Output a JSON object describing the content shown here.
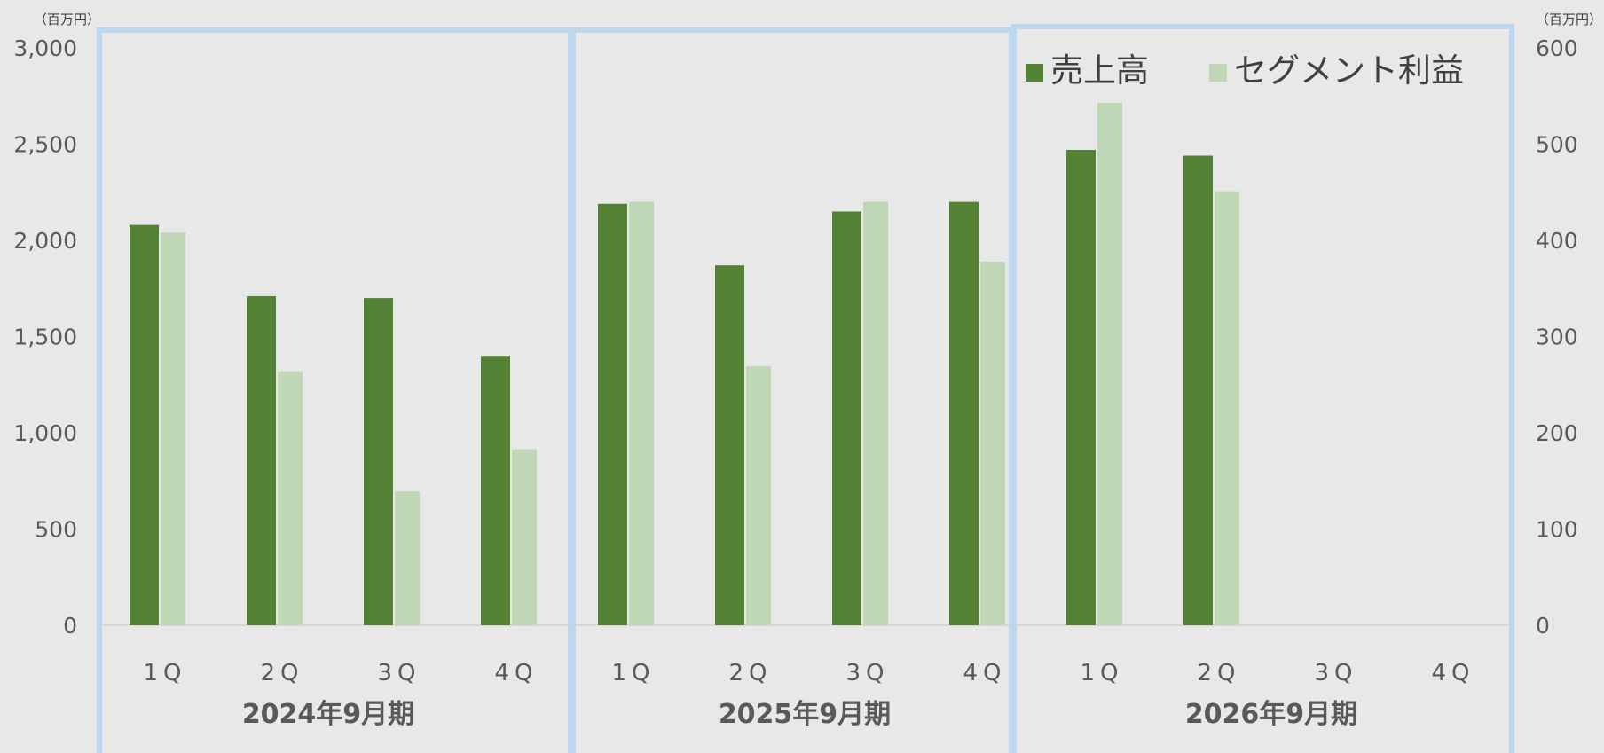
{
  "chart_data": {
    "type": "bar",
    "left_axis": {
      "unit": "（百万円）",
      "ticks": [
        "0",
        "500",
        "1,000",
        "1,500",
        "2,000",
        "2,500",
        "3,000"
      ],
      "ylim": [
        0,
        3000
      ]
    },
    "right_axis": {
      "unit": "（百万円）",
      "ticks": [
        "0",
        "100",
        "200",
        "300",
        "400",
        "500",
        "600"
      ],
      "ylim": [
        0,
        600
      ]
    },
    "groups": [
      {
        "label": "2024年9月期",
        "categories": [
          "1Q",
          "2Q",
          "3Q",
          "4Q"
        ]
      },
      {
        "label": "2025年9月期",
        "categories": [
          "1Q",
          "2Q",
          "3Q",
          "4Q"
        ]
      },
      {
        "label": "2026年9月期",
        "categories": [
          "1Q",
          "2Q",
          "3Q",
          "4Q"
        ]
      }
    ],
    "series": [
      {
        "name": "売上高",
        "axis": "left",
        "color": "#548235",
        "values": [
          2080,
          1710,
          1700,
          1400,
          2190,
          1870,
          2150,
          2200,
          2470,
          2440,
          null,
          null
        ]
      },
      {
        "name": "セグメント利益",
        "axis": "right",
        "color": "#bfd7b6",
        "values": [
          408,
          264,
          139,
          183,
          440,
          269,
          440,
          378,
          543,
          451,
          null,
          null
        ]
      }
    ],
    "legend": {
      "position": "top-right"
    },
    "grid": false,
    "group_frame_color": "#bdd7ee"
  }
}
